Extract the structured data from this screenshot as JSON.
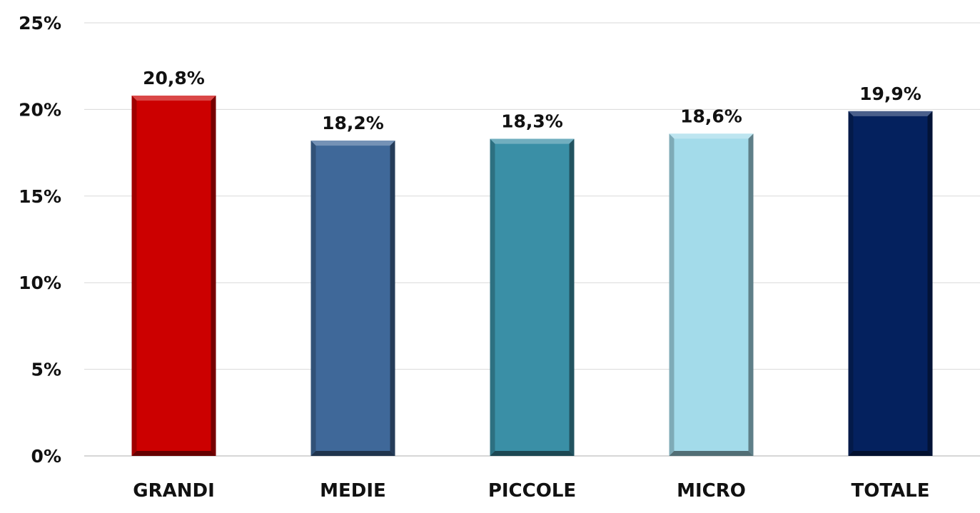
{
  "chart_data": {
    "type": "bar",
    "categories": [
      "GRANDI",
      "MEDIE",
      "PICCOLE",
      "MICRO",
      "TOTALE"
    ],
    "values": [
      20.8,
      18.2,
      18.3,
      18.6,
      19.9
    ],
    "data_labels": [
      "20,8%",
      "18,2%",
      "18,3%",
      "18,6%",
      "19,9%"
    ],
    "bar_colors": [
      "#cc0000",
      "#3f6899",
      "#3a8fa6",
      "#a3dbea",
      "#04215e"
    ],
    "ylim": [
      0,
      25
    ],
    "yticks": [
      0,
      5,
      10,
      15,
      20,
      25
    ],
    "ytick_labels": [
      "0%",
      "5%",
      "10%",
      "15%",
      "20%",
      "25%"
    ],
    "grid": true,
    "legend": false,
    "title": "",
    "xlabel": "",
    "ylabel": ""
  }
}
